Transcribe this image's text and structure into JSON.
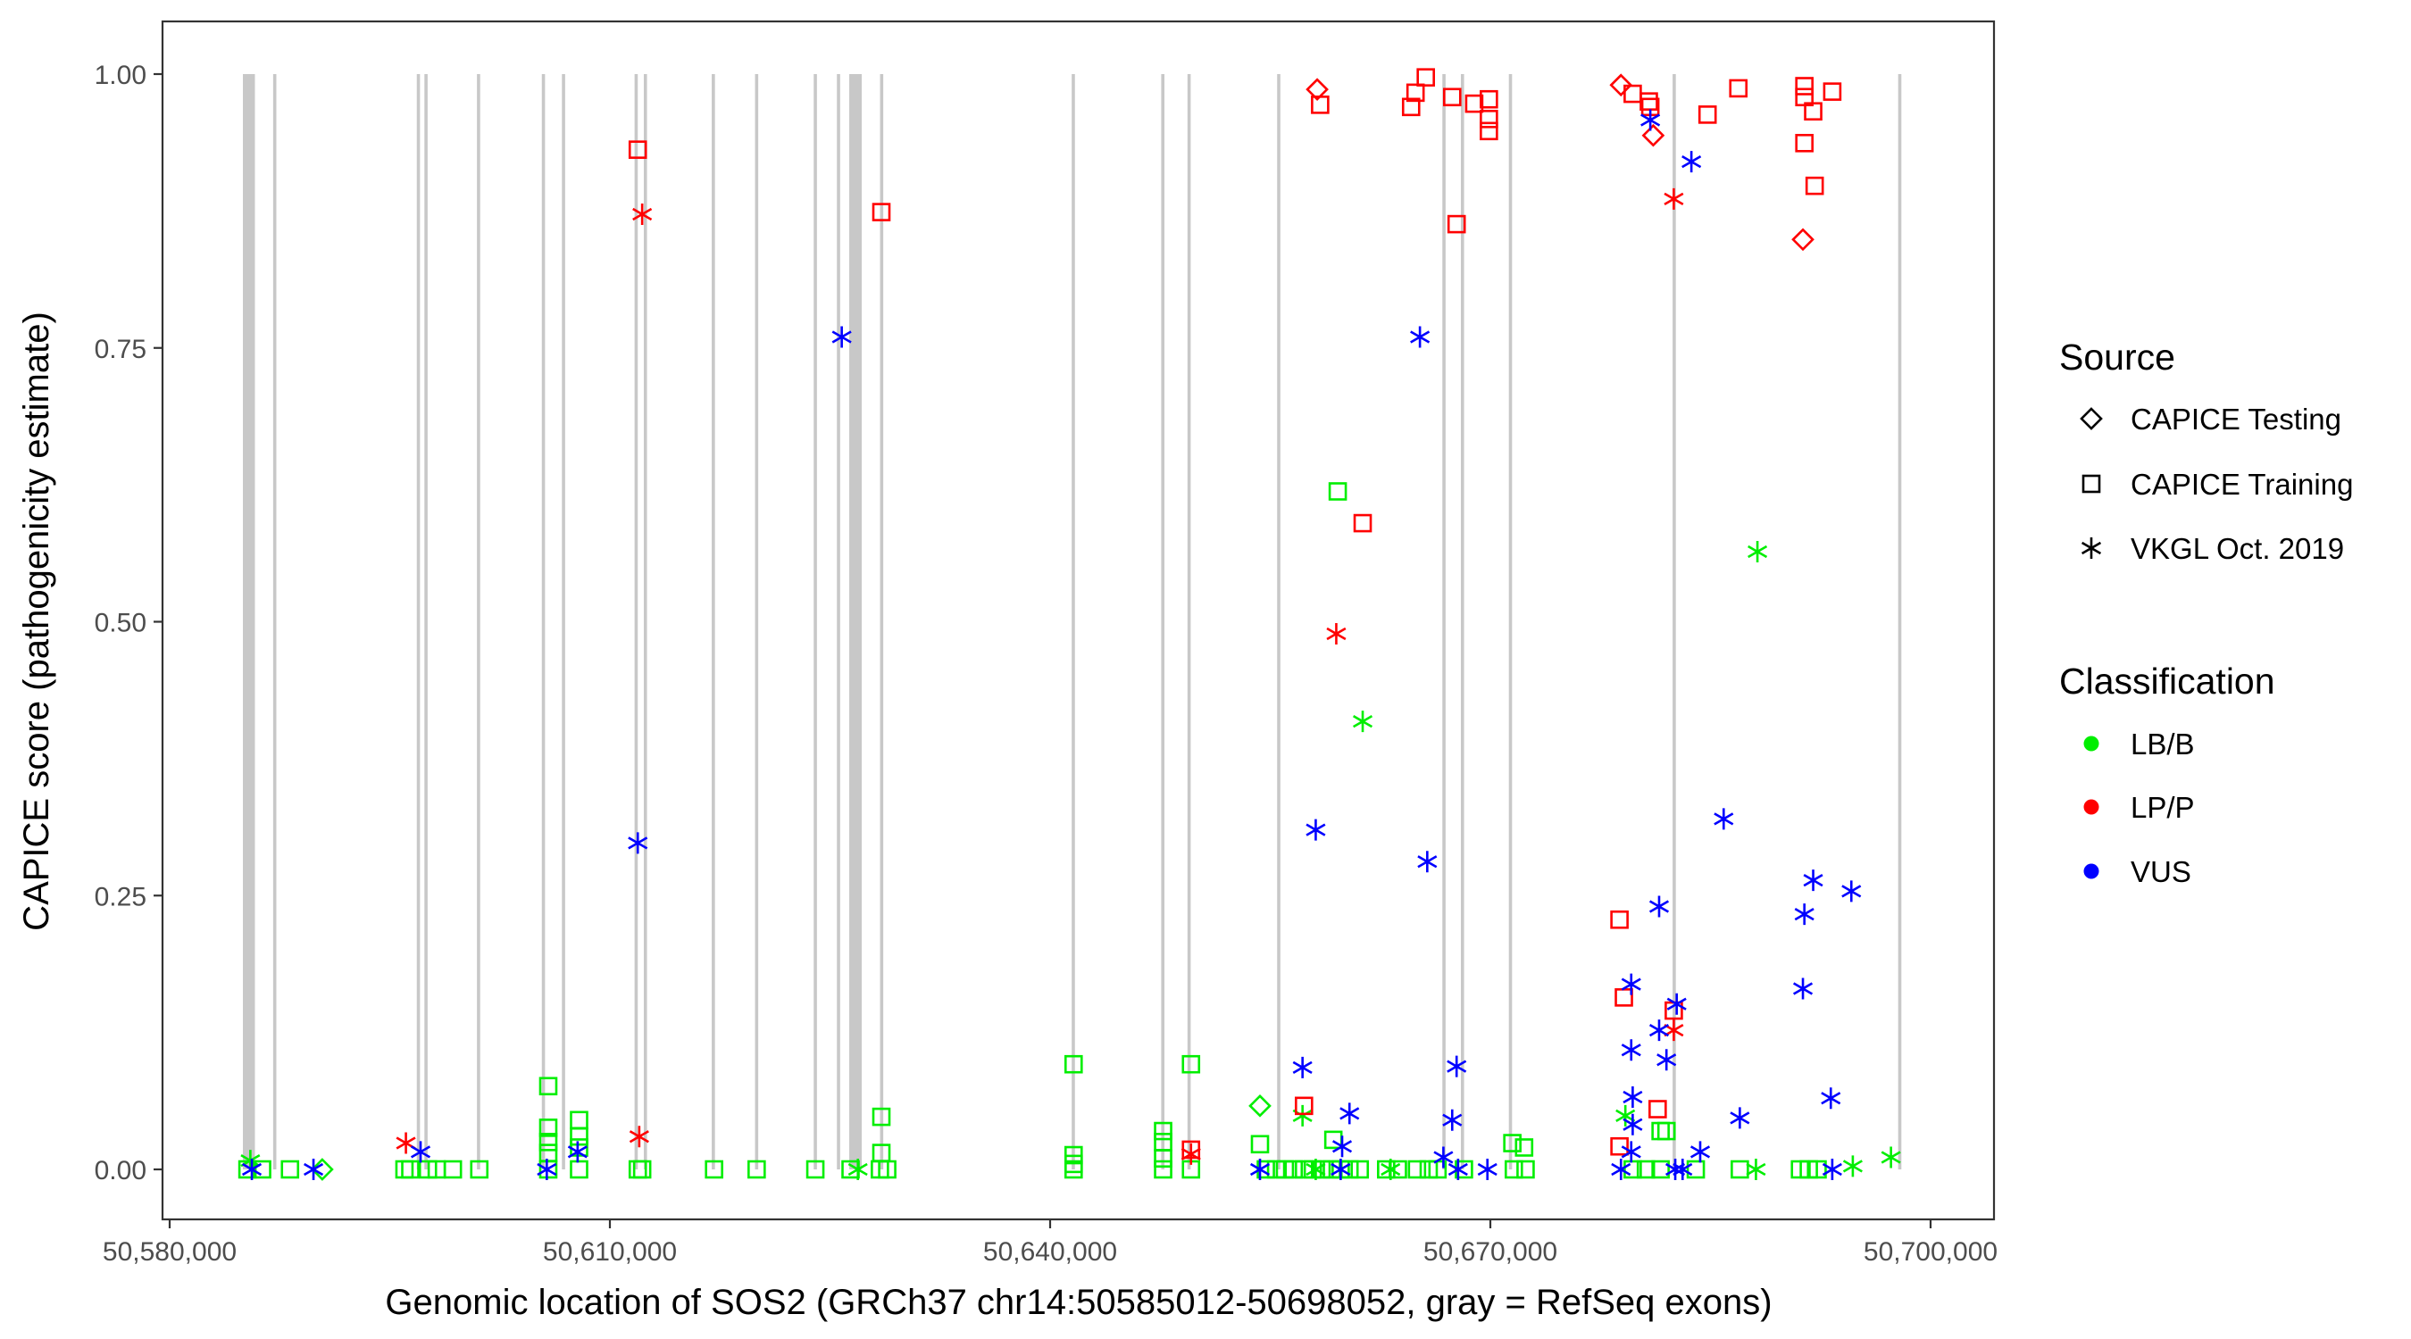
{
  "chart_data": {
    "type": "scatter",
    "xlabel": "Genomic location of SOS2 (GRCh37 chr14:50585012-50698052, gray = RefSeq exons)",
    "ylabel": "CAPICE score (pathogenicity estimate)",
    "xlim": [
      50577500,
      50703500
    ],
    "ylim": [
      -0.045,
      1.05
    ],
    "x_ticks": [
      50580000,
      50610000,
      50640000,
      50670000,
      50700000
    ],
    "x_tick_labels": [
      "50,580,000",
      "50,610,000",
      "50,640,000",
      "50,670,000",
      "50,700,000"
    ],
    "y_ticks": [
      0,
      0.25,
      0.5,
      0.75,
      1.0
    ],
    "y_tick_labels": [
      "0.00",
      "0.25",
      "0.50",
      "0.75",
      "1.00"
    ],
    "grid": false,
    "legend_position": "right",
    "exons": [
      [
        50585100,
        50585700
      ],
      [
        50587160,
        50587160
      ],
      [
        50596950,
        50596950
      ],
      [
        50597470,
        50597470
      ],
      [
        50601050,
        50601050
      ],
      [
        50605470,
        50605470
      ],
      [
        50606840,
        50606840
      ],
      [
        50611790,
        50611790
      ],
      [
        50612420,
        50612420
      ],
      [
        50617050,
        50617050
      ],
      [
        50620000,
        50620000
      ],
      [
        50624000,
        50624000
      ],
      [
        50625580,
        50625580
      ],
      [
        50626420,
        50627050
      ],
      [
        50628520,
        50628520
      ],
      [
        50641580,
        50641580
      ],
      [
        50647680,
        50647680
      ],
      [
        50649470,
        50649470
      ],
      [
        50655580,
        50655580
      ],
      [
        50666840,
        50666840
      ],
      [
        50668100,
        50668100
      ],
      [
        50671370,
        50671370
      ],
      [
        50682530,
        50682530
      ],
      [
        50697900,
        50697900
      ]
    ],
    "legend": {
      "source_title": "Source",
      "source_items": [
        {
          "label": "CAPICE Testing",
          "shape": "diamond"
        },
        {
          "label": "CAPICE Training",
          "shape": "square"
        },
        {
          "label": "VKGL Oct. 2019",
          "shape": "asterisk"
        }
      ],
      "class_title": "Classification",
      "class_items": [
        {
          "label": "LB/B",
          "color": "#00ee00"
        },
        {
          "label": "LP/P",
          "color": "#ff0000"
        },
        {
          "label": "VUS",
          "color": "#0000ff"
        }
      ]
    },
    "series": [
      {
        "source": "CAPICE Training",
        "classification": "LB/B",
        "shape": "square",
        "color": "#00ee00",
        "points": [
          [
            50659600,
            0.619
          ],
          [
            50641600,
            0.096
          ],
          [
            50649600,
            0.096
          ],
          [
            50605800,
            0.076
          ],
          [
            50605800,
            0.038
          ],
          [
            50605800,
            0.025
          ],
          [
            50605800,
            0.015
          ],
          [
            50607900,
            0.045
          ],
          [
            50607900,
            0.03
          ],
          [
            50607900,
            0.02
          ],
          [
            50628500,
            0.048
          ],
          [
            50628500,
            0.015
          ],
          [
            50647700,
            0.035
          ],
          [
            50647700,
            0.025
          ],
          [
            50647700,
            0.01
          ],
          [
            50641600,
            0.013
          ],
          [
            50641600,
            0.005
          ],
          [
            50681600,
            0.035
          ],
          [
            50682000,
            0.035
          ],
          [
            50671500,
            0.024
          ],
          [
            50672300,
            0.02
          ],
          [
            50654300,
            0.023
          ],
          [
            50659300,
            0.027
          ],
          [
            50585300,
            0
          ],
          [
            50586300,
            0
          ],
          [
            50588200,
            0
          ],
          [
            50596000,
            0
          ],
          [
            50596400,
            0
          ],
          [
            50597600,
            0
          ],
          [
            50598200,
            0
          ],
          [
            50599300,
            0
          ],
          [
            50601100,
            0
          ],
          [
            50605800,
            0
          ],
          [
            50607900,
            0
          ],
          [
            50611900,
            0
          ],
          [
            50612200,
            0
          ],
          [
            50617100,
            0
          ],
          [
            50620000,
            0
          ],
          [
            50624000,
            0
          ],
          [
            50626400,
            0
          ],
          [
            50628400,
            0
          ],
          [
            50628900,
            0
          ],
          [
            50641600,
            0
          ],
          [
            50647700,
            0
          ],
          [
            50649600,
            0
          ],
          [
            50654700,
            0
          ],
          [
            50655400,
            0
          ],
          [
            50656000,
            0
          ],
          [
            50656600,
            0
          ],
          [
            50657300,
            0
          ],
          [
            50657900,
            0
          ],
          [
            50658500,
            0
          ],
          [
            50659200,
            0
          ],
          [
            50659800,
            0
          ],
          [
            50660400,
            0
          ],
          [
            50661100,
            0
          ],
          [
            50662900,
            0
          ],
          [
            50663700,
            0
          ],
          [
            50665000,
            0
          ],
          [
            50665800,
            0
          ],
          [
            50666400,
            0
          ],
          [
            50668200,
            0
          ],
          [
            50671600,
            0
          ],
          [
            50672400,
            0
          ],
          [
            50679700,
            0
          ],
          [
            50680600,
            0
          ],
          [
            50681600,
            0
          ],
          [
            50684000,
            0
          ],
          [
            50687000,
            0
          ],
          [
            50691100,
            0
          ],
          [
            50691700,
            0
          ],
          [
            50692300,
            0
          ]
        ]
      },
      {
        "source": "CAPICE Testing",
        "classification": "LB/B",
        "shape": "diamond",
        "color": "#00ee00",
        "points": [
          [
            50654300,
            0.058
          ],
          [
            50590400,
            0
          ]
        ]
      },
      {
        "source": "VKGL Oct. 2019",
        "classification": "LB/B",
        "shape": "asterisk",
        "color": "#00ee00",
        "points": [
          [
            50688200,
            0.564
          ],
          [
            50661300,
            0.409
          ],
          [
            50657200,
            0.049
          ],
          [
            50679200,
            0.049
          ],
          [
            50697300,
            0.011
          ],
          [
            50585500,
            0.008
          ],
          [
            50626900,
            0
          ],
          [
            50688100,
            0
          ],
          [
            50694700,
            0.003
          ],
          [
            50658100,
            0
          ],
          [
            50663200,
            0
          ]
        ]
      },
      {
        "source": "CAPICE Training",
        "classification": "LP/P",
        "shape": "square",
        "color": "#ff0000",
        "points": [
          [
            50611900,
            0.931
          ],
          [
            50628500,
            0.874
          ],
          [
            50658400,
            0.972
          ],
          [
            50664600,
            0.97
          ],
          [
            50664900,
            0.983
          ],
          [
            50665600,
            0.997
          ],
          [
            50667400,
            0.979
          ],
          [
            50668900,
            0.973
          ],
          [
            50669900,
            0.977
          ],
          [
            50669900,
            0.959
          ],
          [
            50669900,
            0.948
          ],
          [
            50667700,
            0.863
          ],
          [
            50661300,
            0.59
          ],
          [
            50657300,
            0.058
          ],
          [
            50679700,
            0.982
          ],
          [
            50680800,
            0.975
          ],
          [
            50680900,
            0.97
          ],
          [
            50684800,
            0.963
          ],
          [
            50686900,
            0.987
          ],
          [
            50691400,
            0.989
          ],
          [
            50691400,
            0.979
          ],
          [
            50691400,
            0.937
          ],
          [
            50692000,
            0.966
          ],
          [
            50692100,
            0.898
          ],
          [
            50693300,
            0.984
          ],
          [
            50678800,
            0.228
          ],
          [
            50678800,
            0.021
          ],
          [
            50679100,
            0.157
          ],
          [
            50681400,
            0.055
          ],
          [
            50682500,
            0.145
          ],
          [
            50649600,
            0.018
          ]
        ]
      },
      {
        "source": "CAPICE Testing",
        "classification": "LP/P",
        "shape": "diamond",
        "color": "#ff0000",
        "points": [
          [
            50658200,
            0.986
          ],
          [
            50678900,
            0.99
          ],
          [
            50681100,
            0.944
          ],
          [
            50691300,
            0.849
          ]
        ]
      },
      {
        "source": "VKGL Oct. 2019",
        "classification": "LP/P",
        "shape": "asterisk",
        "color": "#ff0000",
        "points": [
          [
            50612200,
            0.872
          ],
          [
            50659500,
            0.489
          ],
          [
            50682500,
            0.886
          ],
          [
            50682500,
            0.127
          ],
          [
            50596100,
            0.024
          ],
          [
            50612000,
            0.03
          ],
          [
            50649600,
            0.014
          ]
        ]
      },
      {
        "source": "VKGL Oct. 2019",
        "classification": "VUS",
        "shape": "asterisk",
        "color": "#0000ff",
        "points": [
          [
            50625800,
            0.76
          ],
          [
            50665200,
            0.76
          ],
          [
            50611900,
            0.298
          ],
          [
            50658100,
            0.31
          ],
          [
            50665700,
            0.281
          ],
          [
            50685900,
            0.32
          ],
          [
            50680900,
            0.958
          ],
          [
            50683700,
            0.92
          ],
          [
            50681500,
            0.24
          ],
          [
            50681500,
            0.127
          ],
          [
            50691400,
            0.233
          ],
          [
            50691300,
            0.165
          ],
          [
            50692000,
            0.264
          ],
          [
            50694600,
            0.254
          ],
          [
            50679600,
            0.169
          ],
          [
            50679600,
            0.109
          ],
          [
            50679600,
            0.016
          ],
          [
            50682700,
            0.151
          ],
          [
            50682000,
            0.1
          ],
          [
            50679700,
            0.066
          ],
          [
            50679700,
            0.041
          ],
          [
            50693200,
            0.065
          ],
          [
            50687000,
            0.047
          ],
          [
            50657200,
            0.093
          ],
          [
            50667700,
            0.094
          ],
          [
            50660400,
            0.051
          ],
          [
            50667400,
            0.045
          ],
          [
            50659900,
            0.021
          ],
          [
            50597100,
            0.016
          ],
          [
            50607800,
            0.016
          ],
          [
            50684300,
            0.016
          ],
          [
            50666800,
            0.011
          ],
          [
            50585600,
            0
          ],
          [
            50589800,
            0
          ],
          [
            50605700,
            0
          ],
          [
            50654300,
            0
          ],
          [
            50659800,
            0
          ],
          [
            50667800,
            0
          ],
          [
            50669800,
            0
          ],
          [
            50678900,
            0
          ],
          [
            50682600,
            0
          ],
          [
            50683100,
            0
          ],
          [
            50693300,
            0
          ]
        ]
      }
    ]
  }
}
